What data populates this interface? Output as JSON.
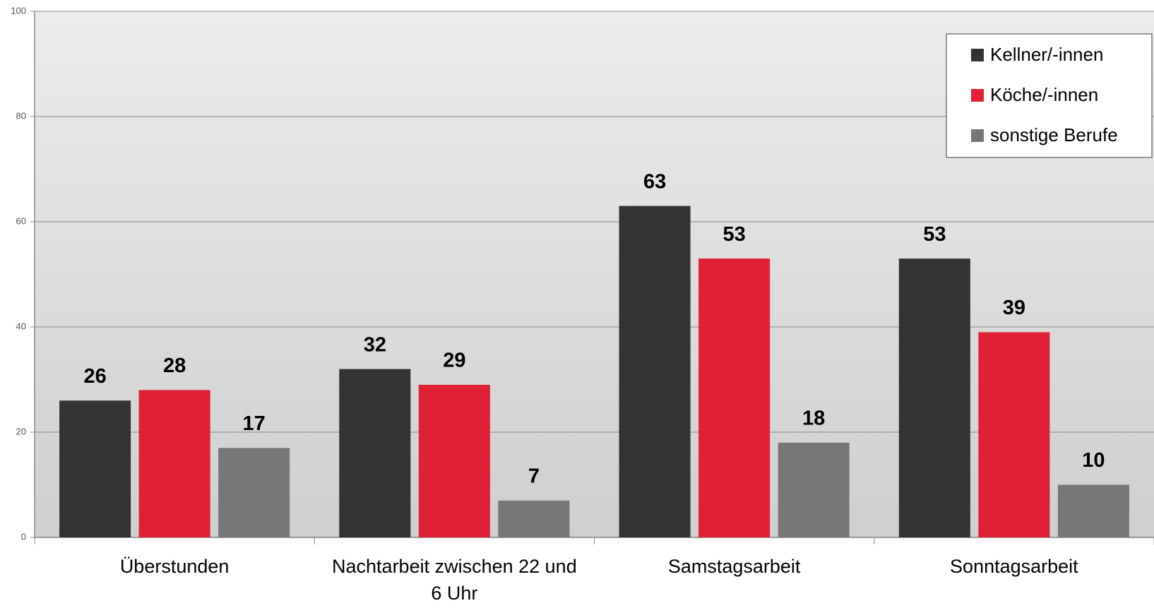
{
  "chart_data": {
    "type": "bar",
    "categories": [
      "Überstunden",
      "Nachtarbeit zwischen 22 und 6 Uhr",
      "Samstagsarbeit",
      "Sonntagsarbeit"
    ],
    "series": [
      {
        "name": "Kellner/-innen",
        "color": "#333333",
        "values": [
          26,
          32,
          63,
          53
        ]
      },
      {
        "name": "Köche/-innen",
        "color": "#df2035",
        "values": [
          28,
          29,
          53,
          39
        ]
      },
      {
        "name": "sonstige Berufe",
        "color": "#777777",
        "values": [
          17,
          7,
          18,
          10
        ]
      }
    ],
    "ylim": [
      0,
      100
    ],
    "yticks": [
      0,
      20,
      40,
      60,
      80,
      100
    ],
    "grid": true,
    "legend": "upper right"
  }
}
